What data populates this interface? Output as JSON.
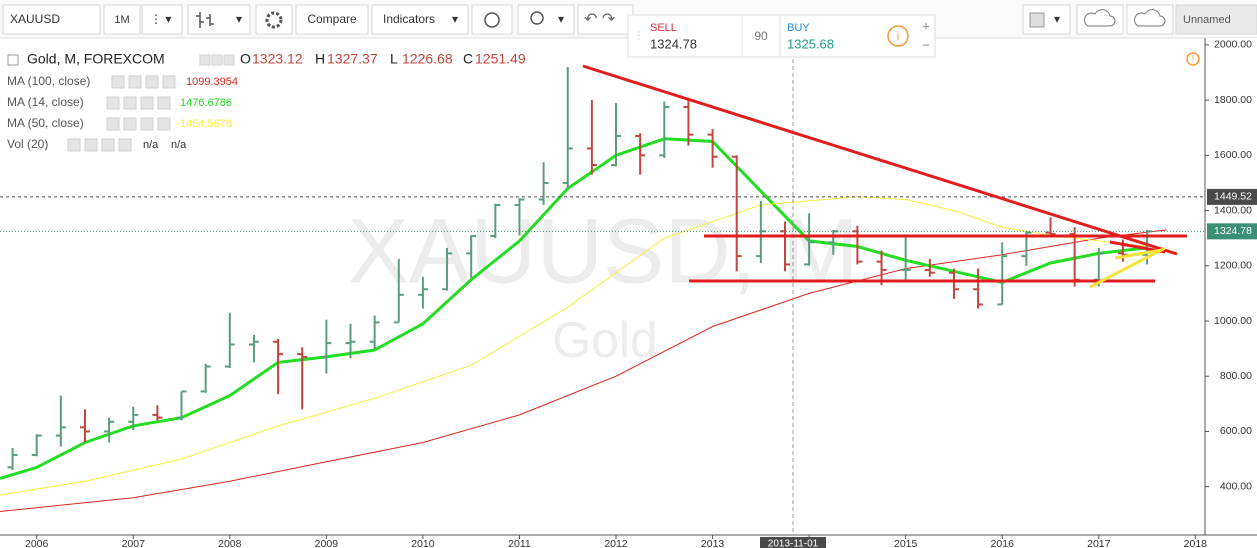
{
  "toolbar": {
    "symbol": "XAUUSD",
    "interval": "1M",
    "compare": "Compare",
    "indicators": "Indicators",
    "layout_name": "Unnamed"
  },
  "quote_panel": {
    "sell_label": "SELL",
    "sell_price": 1324.78,
    "spread": 90,
    "buy_label": "BUY",
    "buy_price": 1325.68
  },
  "chart_data": {
    "type": "ohlc",
    "title": "Gold, M, FOREXCOM",
    "watermark": "XAUUSD, M",
    "watermark_subtitle": "Gold",
    "ohlc_legend": [
      {
        "label": "O",
        "value": 1323.12
      },
      {
        "label": "H",
        "value": 1327.37
      },
      {
        "label": "L",
        "value": 1226.68
      },
      {
        "label": "C",
        "value": 1251.49
      }
    ],
    "up_color": "#5a9c7c",
    "down_color": "#c4453d",
    "x": [
      2005.75,
      2006.0,
      2006.25,
      2006.5,
      2006.75,
      2007.0,
      2007.25,
      2007.5,
      2007.75,
      2008.0,
      2008.25,
      2008.5,
      2008.75,
      2009.0,
      2009.25,
      2009.5,
      2009.75,
      2010.0,
      2010.25,
      2010.5,
      2010.75,
      2011.0,
      2011.25,
      2011.5,
      2011.75,
      2012.0,
      2012.25,
      2012.5,
      2012.75,
      2013.0,
      2013.25,
      2013.5,
      2013.75,
      2014.0,
      2014.25,
      2014.5,
      2014.75,
      2015.0,
      2015.25,
      2015.5,
      2015.75,
      2016.0,
      2016.25,
      2016.5,
      2016.75,
      2017.0,
      2017.25,
      2017.5
    ],
    "open": [
      470,
      515,
      585,
      615,
      600,
      635,
      660,
      650,
      745,
      835,
      915,
      925,
      880,
      870,
      920,
      925,
      995,
      1095,
      1115,
      1245,
      1308,
      1420,
      1440,
      1500,
      1625,
      1565,
      1670,
      1600,
      1775,
      1675,
      1595,
      1235,
      1325,
      1205,
      1285,
      1325,
      1215,
      1185,
      1185,
      1175,
      1115,
      1060,
      1235,
      1320,
      1315,
      1150,
      1245,
      1240
    ],
    "high": [
      540,
      590,
      730,
      680,
      650,
      690,
      695,
      745,
      845,
      1030,
      950,
      935,
      905,
      1005,
      990,
      1020,
      1225,
      1160,
      1265,
      1310,
      1425,
      1445,
      1575,
      1920,
      1800,
      1790,
      1680,
      1795,
      1800,
      1695,
      1600,
      1435,
      1360,
      1390,
      1330,
      1345,
      1255,
      1310,
      1225,
      1190,
      1190,
      1285,
      1325,
      1375,
      1340,
      1265,
      1295,
      1330
    ],
    "low": [
      460,
      510,
      545,
      560,
      560,
      605,
      640,
      640,
      740,
      830,
      850,
      735,
      680,
      810,
      865,
      900,
      995,
      1045,
      1110,
      1155,
      1300,
      1310,
      1420,
      1480,
      1530,
      1560,
      1530,
      1590,
      1635,
      1555,
      1180,
      1210,
      1180,
      1200,
      1240,
      1205,
      1130,
      1140,
      1160,
      1080,
      1045,
      1060,
      1200,
      1305,
      1125,
      1125,
      1215,
      1205
    ],
    "close": [
      515,
      585,
      615,
      600,
      635,
      660,
      650,
      745,
      835,
      915,
      925,
      880,
      870,
      920,
      925,
      995,
      1095,
      1115,
      1245,
      1308,
      1420,
      1440,
      1500,
      1625,
      1565,
      1670,
      1600,
      1775,
      1675,
      1595,
      1235,
      1325,
      1205,
      1285,
      1325,
      1215,
      1185,
      1185,
      1175,
      1115,
      1060,
      1235,
      1320,
      1315,
      1150,
      1245,
      1240,
      1325
    ],
    "overlays": [
      {
        "name": "MA (100, close)",
        "color": "#d8261e",
        "width": 1,
        "legend_value": 1099.3954,
        "x": [
          2005.62,
          2007,
          2008,
          2009,
          2010,
          2011,
          2012,
          2013,
          2014,
          2015,
          2016,
          2017,
          2017.7
        ],
        "values": [
          310,
          360,
          420,
          490,
          560,
          660,
          800,
          980,
          1100,
          1190,
          1240,
          1300,
          1330
        ]
      },
      {
        "name": "MA (14, close)",
        "color": "#22dd22",
        "width": 3,
        "legend_value": 1476.6786,
        "x": [
          2005.62,
          2006,
          2006.5,
          2007,
          2007.5,
          2008,
          2008.5,
          2009,
          2009.5,
          2010,
          2010.5,
          2011,
          2011.5,
          2012,
          2012.5,
          2013,
          2013.5,
          2014,
          2014.5,
          2015,
          2015.5,
          2016,
          2016.5,
          2017,
          2017.5
        ],
        "values": [
          430,
          470,
          560,
          620,
          650,
          730,
          850,
          870,
          895,
          990,
          1150,
          1290,
          1480,
          1600,
          1660,
          1650,
          1470,
          1290,
          1270,
          1220,
          1180,
          1140,
          1210,
          1245,
          1265
        ]
      },
      {
        "name": "MA (50, close)",
        "color": "#f3ef3c",
        "width": 1,
        "legend_value": 1454.5678,
        "x": [
          2005.62,
          2006.5,
          2007.5,
          2008.5,
          2009.5,
          2010.5,
          2011.5,
          2012.5,
          2013.5,
          2014.5,
          2015,
          2015.5,
          2016,
          2016.5,
          2017,
          2017.5
        ],
        "values": [
          370,
          420,
          500,
          620,
          720,
          840,
          1050,
          1300,
          1420,
          1450,
          1440,
          1400,
          1340,
          1310,
          1290,
          1270
        ]
      }
    ],
    "volume_legend": {
      "name": "Vol (20)",
      "values": [
        "n/a",
        "n/a"
      ]
    },
    "price_markers": [
      {
        "value": 1449.52,
        "color": "#4a4a4a"
      },
      {
        "value": 1324.78,
        "color": "#3b8f74"
      }
    ],
    "crosshair_label": "2013-11-01",
    "xlim": [
      2005.62,
      2018.1
    ],
    "xticks": [
      2006,
      2007,
      2008,
      2009,
      2010,
      2011,
      2012,
      2013,
      2014,
      2015,
      2016,
      2017,
      2018
    ],
    "ylim": [
      225,
      2025
    ],
    "yticks": [
      {
        "value": 400,
        "label": "400.00"
      },
      {
        "value": 600,
        "label": "600.00"
      },
      {
        "value": 800,
        "label": "800.00"
      },
      {
        "value": 1000,
        "label": "1000.00"
      },
      {
        "value": 1200,
        "label": "1200.00"
      },
      {
        "value": 1400,
        "label": "1400.00"
      },
      {
        "value": 1600,
        "label": "1600.00"
      },
      {
        "value": 1800,
        "label": "1800.00"
      },
      {
        "value": 2000,
        "label": "2000.00"
      }
    ],
    "grid": false
  }
}
